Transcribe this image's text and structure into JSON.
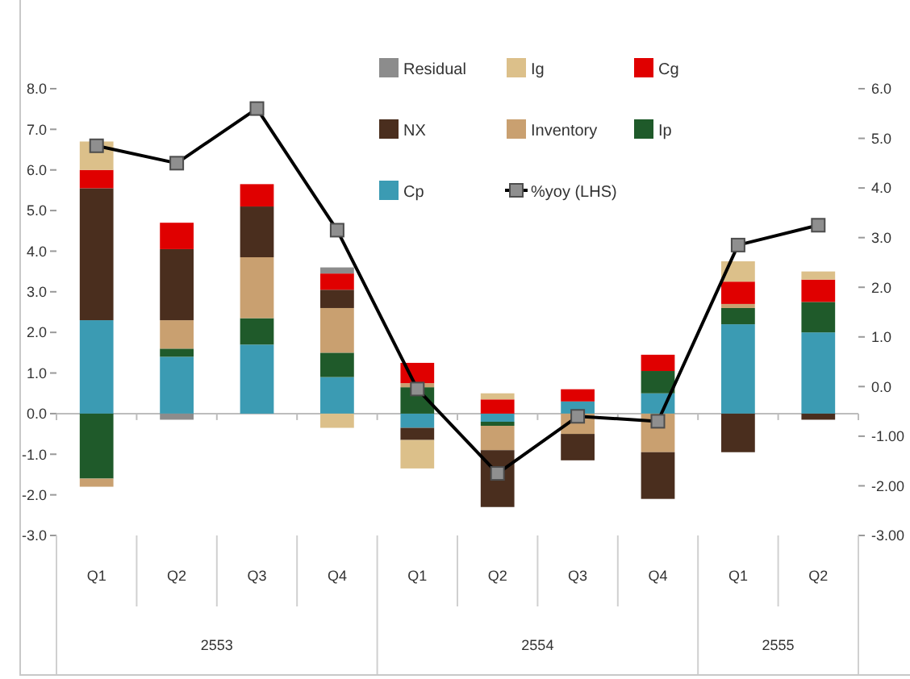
{
  "chart_data": {
    "type": "bar",
    "stacked": true,
    "categories": [
      "Q1",
      "Q2",
      "Q3",
      "Q4",
      "Q1",
      "Q2",
      "Q3",
      "Q4",
      "Q1",
      "Q2"
    ],
    "series": [
      {
        "name": "Cp",
        "color": "#3b9bb3",
        "values": [
          2.3,
          1.4,
          1.7,
          0.9,
          -0.35,
          -0.2,
          0.3,
          0.5,
          2.2,
          2.0
        ]
      },
      {
        "name": "Ip",
        "color": "#1f5a2a",
        "values": [
          -1.6,
          0.2,
          0.65,
          0.6,
          0.65,
          -0.1,
          null,
          0.55,
          0.4,
          0.75
        ]
      },
      {
        "name": "Inventory",
        "color": "#c9a070",
        "values": [
          -0.2,
          0.7,
          1.5,
          1.1,
          0.1,
          -0.6,
          -0.5,
          -0.95,
          0.1,
          null
        ]
      },
      {
        "name": "NX",
        "color": "#4a2e1e",
        "values": [
          3.25,
          1.75,
          1.25,
          0.45,
          -0.3,
          -1.4,
          -0.65,
          -1.15,
          -0.95,
          -0.15
        ]
      },
      {
        "name": "Cg",
        "color": "#e00000",
        "values": [
          0.45,
          0.65,
          0.55,
          0.4,
          0.5,
          0.35,
          0.3,
          0.4,
          0.55,
          0.55
        ]
      },
      {
        "name": "Ig",
        "color": "#dcc08a",
        "values": [
          0.7,
          null,
          null,
          -0.35,
          -0.7,
          0.15,
          null,
          null,
          0.5,
          0.2
        ]
      },
      {
        "name": "Residual",
        "color": "#8c8c8c",
        "values": [
          null,
          -0.15,
          null,
          0.15,
          null,
          null,
          null,
          null,
          null,
          null
        ]
      },
      {
        "name": "%yoy (LHS)",
        "type": "line",
        "axis": "y2",
        "color": "#000000",
        "values": [
          4.85,
          4.5,
          5.6,
          3.15,
          -0.05,
          -1.75,
          -0.6,
          -0.7,
          2.85,
          3.25
        ]
      }
    ],
    "ylim": [
      -3,
      8
    ],
    "yticks": [
      {
        "value": -3,
        "label": "-3.0"
      },
      {
        "value": -2,
        "label": "-2.0"
      },
      {
        "value": -1,
        "label": "-1.0"
      },
      {
        "value": 0,
        "label": "0.0"
      },
      {
        "value": 1,
        "label": "1.0"
      },
      {
        "value": 2,
        "label": "2.0"
      },
      {
        "value": 3,
        "label": "3.0"
      },
      {
        "value": 4,
        "label": "4.0"
      },
      {
        "value": 5,
        "label": "5.0"
      },
      {
        "value": 6,
        "label": "6.0"
      },
      {
        "value": 7,
        "label": "7.0"
      },
      {
        "value": 8,
        "label": "8.0"
      }
    ],
    "y2lim": [
      -3,
      6
    ],
    "y2ticks": [
      {
        "value": -3,
        "label": "-3.00"
      },
      {
        "value": -2,
        "label": "-2.00"
      },
      {
        "value": -1,
        "label": "-1.00"
      },
      {
        "value": 0,
        "label": "0.0"
      },
      {
        "value": 1,
        "label": "1.0"
      },
      {
        "value": 2,
        "label": "2.0"
      },
      {
        "value": 3,
        "label": "3.0"
      },
      {
        "value": 4,
        "label": "4.0"
      },
      {
        "value": 5,
        "label": "5.0"
      },
      {
        "value": 6,
        "label": "6.0"
      }
    ],
    "annotations": [
      "2553",
      "2554",
      "2555"
    ],
    "legend": "top",
    "marker": "square"
  }
}
